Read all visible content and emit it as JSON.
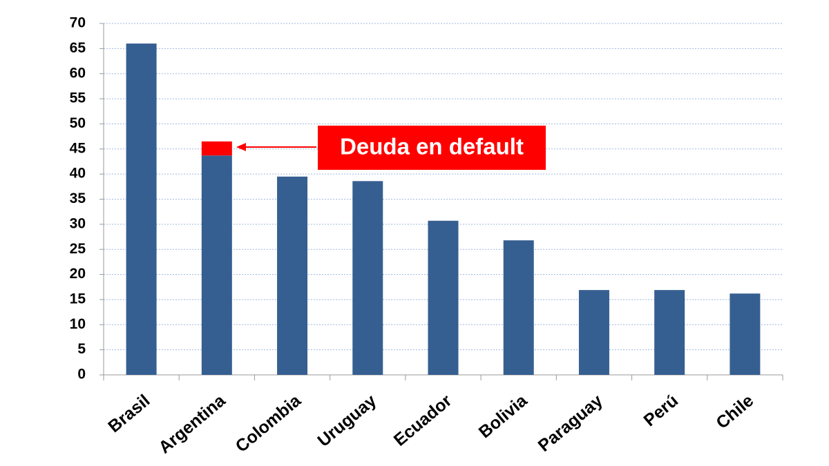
{
  "chart_data": {
    "type": "stacked_bar",
    "categories": [
      "Brasil",
      "Argentina",
      "Colombia",
      "Uruguay",
      "Ecuador",
      "Bolivia",
      "Paraguay",
      "Perú",
      "Chile"
    ],
    "series": [
      {
        "color": "#365f91",
        "values": [
          66.0,
          43.7,
          39.5,
          38.6,
          30.7,
          26.8,
          16.9,
          16.9,
          16.2
        ]
      },
      {
        "color": "#ff0000",
        "values": [
          null,
          2.8,
          null,
          null,
          null,
          null,
          null,
          null,
          null
        ]
      }
    ],
    "annotation": "Deuda en default",
    "ylim": [
      0,
      70
    ],
    "yticks": [
      0,
      5,
      10,
      15,
      20,
      25,
      30,
      35,
      40,
      45,
      50,
      55,
      60,
      65,
      70
    ],
    "grid": true
  }
}
